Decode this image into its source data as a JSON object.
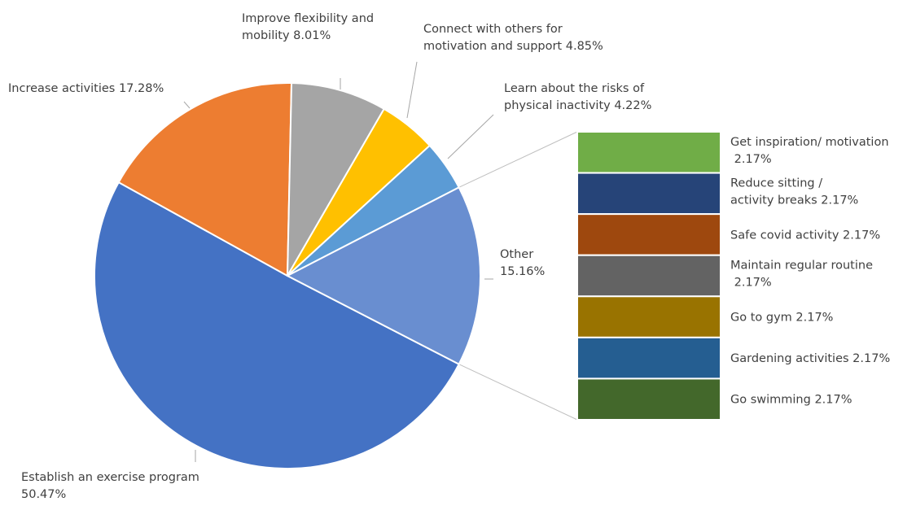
{
  "chart_data": {
    "type": "pie",
    "subtype": "bar-of-pie",
    "slices": [
      {
        "label": "Establish an exercise program",
        "value": 50.47,
        "display": "50.47%",
        "color": "#4472C4"
      },
      {
        "label": "Increase activities",
        "value": 17.28,
        "display": "17.28%",
        "color": "#ED7D31"
      },
      {
        "label": "Improve flexibility and mobility",
        "value": 8.01,
        "display": "8.01%",
        "color": "#A5A5A5"
      },
      {
        "label": "Connect with others for motivation and support",
        "value": 4.85,
        "display": "4.85%",
        "color": "#FFC000"
      },
      {
        "label": "Learn about the risks of physical inactivity",
        "value": 4.22,
        "display": "4.22%",
        "color": "#5B9BD5"
      },
      {
        "label": "Other",
        "value": 15.16,
        "display": "15.16%",
        "color": "#698ED0"
      }
    ],
    "other_breakdown": [
      {
        "label": "Get inspiration/ motivation",
        "value": 2.17,
        "display": "2.17%",
        "color": "#70AD47"
      },
      {
        "label": "Reduce sitting / activity breaks",
        "value": 2.17,
        "display": "2.17%",
        "color": "#264478"
      },
      {
        "label": "Safe covid activity",
        "value": 2.17,
        "display": "2.17%",
        "color": "#9E480E"
      },
      {
        "label": "Maintain regular routine",
        "value": 2.17,
        "display": "2.17%",
        "color": "#636363"
      },
      {
        "label": "Go to gym",
        "value": 2.17,
        "display": "2.17%",
        "color": "#997300"
      },
      {
        "label": "Gardening activities",
        "value": 2.17,
        "display": "2.17%",
        "color": "#255E91"
      },
      {
        "label": "Go swimming",
        "value": 2.17,
        "display": "2.17%",
        "color": "#43682B"
      }
    ]
  }
}
